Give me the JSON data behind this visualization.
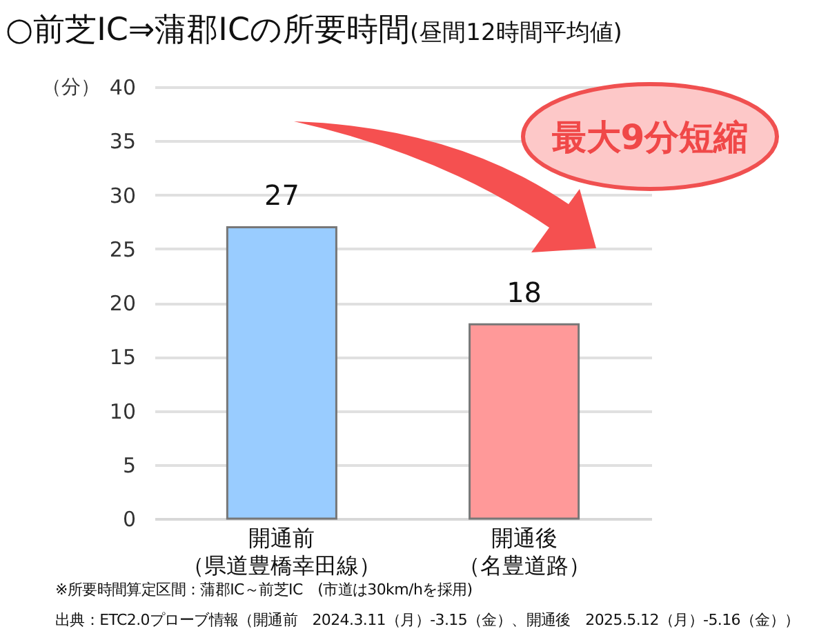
{
  "chart_data": {
    "type": "bar",
    "title": "○前芝IC⇒蒲郡ICの所要時間",
    "subtitle": "(昼間12時間平均値)",
    "ylabel": "（分）",
    "categories": [
      "開通前（県道豊橋幸田線）",
      "開通後（名豊道路）"
    ],
    "values": [
      27,
      18
    ],
    "colors": [
      "#99ccff",
      "#ff9999"
    ],
    "ylim": [
      0,
      40
    ],
    "yticks": [
      0,
      5,
      10,
      15,
      20,
      25,
      30,
      35,
      40
    ],
    "grid": "y",
    "data_labels": true,
    "annotations": [
      "最大9分短縮",
      "※所要時間算定区間：蒲郡IC～前芝IC　(市道は30km/hを採用)",
      "出典：ETC2.0プローブ情報（開通前　2024.3.11（月）-3.15（金）、開通後　2025.5.12（月）-5.16（金））"
    ]
  }
}
